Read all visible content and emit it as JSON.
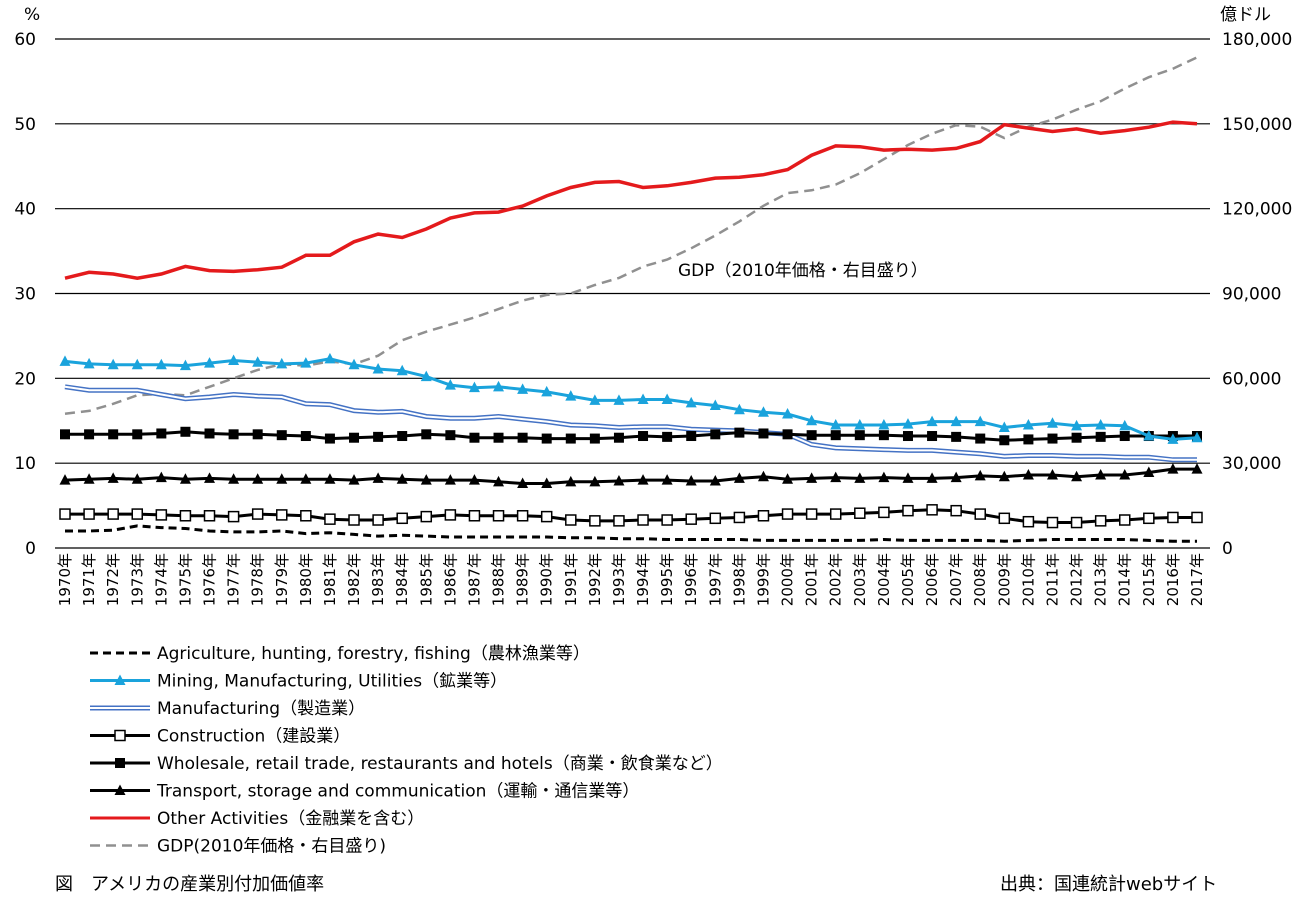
{
  "chart_data": {
    "type": "line",
    "title": "アメリカの産業別付加価値率",
    "y_left": {
      "label": "%",
      "ticks": [
        "0",
        "10",
        "20",
        "30",
        "40",
        "50",
        "60"
      ],
      "range": [
        0,
        60
      ]
    },
    "y_right": {
      "label": "億ドル",
      "ticks": [
        "0",
        "30,000",
        "60,000",
        "90,000",
        "120,000",
        "150,000",
        "180,000"
      ],
      "range": [
        0,
        180000
      ]
    },
    "x": [
      "1970年",
      "1971年",
      "1972年",
      "1973年",
      "1974年",
      "1975年",
      "1976年",
      "1977年",
      "1978年",
      "1979年",
      "1980年",
      "1981年",
      "1982年",
      "1983年",
      "1984年",
      "1985年",
      "1986年",
      "1987年",
      "1988年",
      "1989年",
      "1990年",
      "1991年",
      "1992年",
      "1993年",
      "1994年",
      "1995年",
      "1996年",
      "1997年",
      "1998年",
      "1999年",
      "2000年",
      "2001年",
      "2002年",
      "2003年",
      "2004年",
      "2005年",
      "2006年",
      "2007年",
      "2008年",
      "2009年",
      "2010年",
      "2011年",
      "2012年",
      "2013年",
      "2014年",
      "2015年",
      "2016年",
      "2017年"
    ],
    "annotation": "GDP（2010年価格・右目盛り）",
    "series": [
      {
        "name": "Agriculture, hunting, forestry, fishing（農林漁業等）",
        "axis": "left",
        "color": "#000000",
        "style": "dashed",
        "marker": "none",
        "values": [
          2.0,
          2.0,
          2.1,
          2.6,
          2.4,
          2.3,
          2.0,
          1.9,
          1.9,
          2.0,
          1.7,
          1.8,
          1.6,
          1.4,
          1.5,
          1.4,
          1.3,
          1.3,
          1.3,
          1.3,
          1.3,
          1.2,
          1.2,
          1.1,
          1.1,
          1.0,
          1.0,
          1.0,
          1.0,
          0.9,
          0.9,
          0.9,
          0.9,
          0.9,
          1.0,
          0.9,
          0.9,
          0.9,
          0.9,
          0.8,
          0.9,
          1.0,
          1.0,
          1.0,
          1.0,
          0.9,
          0.8,
          0.8
        ]
      },
      {
        "name": "Mining, Manufacturing, Utilities（鉱業等）",
        "axis": "left",
        "color": "#1aa3dc",
        "style": "solid",
        "marker": "triangle",
        "values": [
          22.0,
          21.7,
          21.6,
          21.6,
          21.6,
          21.5,
          21.8,
          22.1,
          21.9,
          21.7,
          21.8,
          22.3,
          21.6,
          21.1,
          20.9,
          20.2,
          19.2,
          18.9,
          19.0,
          18.7,
          18.4,
          17.9,
          17.4,
          17.4,
          17.5,
          17.5,
          17.1,
          16.8,
          16.3,
          16.0,
          15.8,
          15.0,
          14.5,
          14.5,
          14.5,
          14.6,
          14.9,
          14.9,
          14.9,
          14.2,
          14.5,
          14.7,
          14.4,
          14.5,
          14.4,
          13.2,
          12.8,
          13.0
        ]
      },
      {
        "name": "Manufacturing（製造業）",
        "axis": "left",
        "color": "#4472c4",
        "style": "double",
        "marker": "none",
        "values": [
          19.0,
          18.6,
          18.6,
          18.6,
          18.1,
          17.6,
          17.8,
          18.1,
          17.9,
          17.8,
          17.0,
          16.9,
          16.2,
          16.0,
          16.1,
          15.5,
          15.3,
          15.3,
          15.5,
          15.2,
          14.9,
          14.5,
          14.4,
          14.2,
          14.3,
          14.3,
          14.0,
          13.9,
          13.8,
          13.6,
          13.4,
          12.2,
          11.8,
          11.7,
          11.6,
          11.5,
          11.5,
          11.3,
          11.1,
          10.8,
          10.9,
          10.9,
          10.8,
          10.8,
          10.7,
          10.7,
          10.4,
          10.4
        ]
      },
      {
        "name": "Construction（建設業）",
        "axis": "left",
        "color": "#000000",
        "style": "solid",
        "marker": "square-open",
        "values": [
          4.0,
          4.0,
          4.0,
          4.0,
          3.9,
          3.8,
          3.8,
          3.7,
          4.0,
          3.9,
          3.8,
          3.4,
          3.3,
          3.3,
          3.5,
          3.7,
          3.9,
          3.8,
          3.8,
          3.8,
          3.7,
          3.3,
          3.2,
          3.2,
          3.3,
          3.3,
          3.4,
          3.5,
          3.6,
          3.8,
          4.0,
          4.0,
          4.0,
          4.1,
          4.2,
          4.4,
          4.5,
          4.4,
          4.0,
          3.5,
          3.1,
          3.0,
          3.0,
          3.2,
          3.3,
          3.5,
          3.6,
          3.6
        ]
      },
      {
        "name": "Wholesale, retail trade, restaurants and hotels（商業・飲食業など）",
        "axis": "left",
        "color": "#000000",
        "style": "solid",
        "marker": "square",
        "values": [
          13.4,
          13.4,
          13.4,
          13.4,
          13.5,
          13.7,
          13.5,
          13.4,
          13.4,
          13.3,
          13.2,
          12.9,
          13.0,
          13.1,
          13.2,
          13.4,
          13.3,
          13.0,
          13.0,
          13.0,
          12.9,
          12.9,
          12.9,
          13.0,
          13.2,
          13.1,
          13.2,
          13.4,
          13.6,
          13.5,
          13.4,
          13.3,
          13.3,
          13.3,
          13.3,
          13.2,
          13.2,
          13.1,
          12.9,
          12.7,
          12.8,
          12.9,
          13.0,
          13.1,
          13.2,
          13.2,
          13.2,
          13.2
        ]
      },
      {
        "name": "Transport, storage and communication（運輸・通信業等）",
        "axis": "left",
        "color": "#000000",
        "style": "solid",
        "marker": "triangle",
        "values": [
          8.0,
          8.1,
          8.2,
          8.1,
          8.3,
          8.1,
          8.2,
          8.1,
          8.1,
          8.1,
          8.1,
          8.1,
          8.0,
          8.2,
          8.1,
          8.0,
          8.0,
          8.0,
          7.8,
          7.6,
          7.6,
          7.8,
          7.8,
          7.9,
          8.0,
          8.0,
          7.9,
          7.9,
          8.2,
          8.4,
          8.1,
          8.2,
          8.3,
          8.2,
          8.3,
          8.2,
          8.2,
          8.3,
          8.5,
          8.4,
          8.6,
          8.6,
          8.4,
          8.6,
          8.6,
          8.9,
          9.3,
          9.3
        ]
      },
      {
        "name": "Other Activities（金融業を含む）",
        "axis": "left",
        "color": "#e41a1c",
        "style": "solid",
        "marker": "none",
        "values": [
          31.8,
          32.5,
          32.3,
          31.8,
          32.3,
          33.2,
          32.7,
          32.6,
          32.8,
          33.1,
          34.5,
          34.5,
          36.1,
          37.0,
          36.6,
          37.6,
          38.9,
          39.5,
          39.6,
          40.3,
          41.5,
          42.5,
          43.1,
          43.2,
          42.5,
          42.7,
          43.1,
          43.6,
          43.7,
          44.0,
          44.6,
          46.3,
          47.4,
          47.3,
          46.9,
          47.0,
          46.9,
          47.1,
          47.9,
          49.9,
          49.5,
          49.1,
          49.4,
          48.9,
          49.2,
          49.6,
          50.2,
          50.0
        ]
      },
      {
        "name": "GDP(2010年価格・右目盛り)",
        "axis": "right",
        "color": "#909090",
        "style": "dashed-light",
        "marker": "none",
        "values": [
          47500,
          48500,
          51000,
          54000,
          54500,
          54000,
          57000,
          60000,
          63000,
          65000,
          64500,
          66000,
          65000,
          68000,
          73500,
          76500,
          79000,
          81500,
          84500,
          87500,
          89500,
          90000,
          93000,
          95500,
          99500,
          102000,
          106000,
          110500,
          115500,
          121000,
          125500,
          126500,
          128500,
          132500,
          137500,
          142500,
          146500,
          149500,
          149000,
          145000,
          149000,
          151500,
          155000,
          158000,
          162500,
          166500,
          169500,
          173500
        ]
      }
    ]
  },
  "caption": {
    "title": "図　アメリカの産業別付加価値率",
    "source": "出典：国連統計webサイト"
  }
}
